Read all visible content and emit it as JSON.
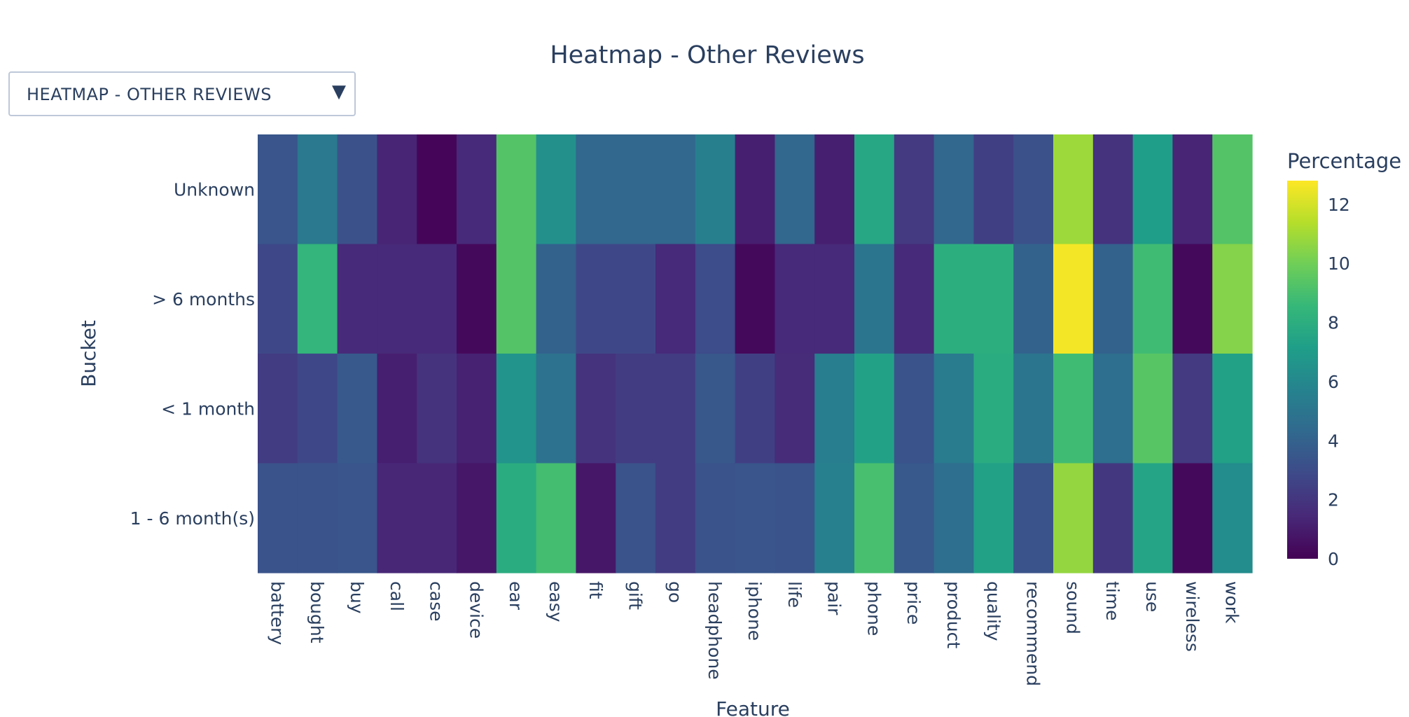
{
  "dropdown": {
    "selected": "HEATMAP - OTHER REVIEWS",
    "arrow_icon": "triangle-down-icon"
  },
  "chart_data": {
    "type": "heatmap",
    "title": "Heatmap - Other Reviews",
    "xlabel": "Feature",
    "ylabel": "Bucket",
    "colorbar_title": "Percentage",
    "colorscale": "viridis",
    "zmin": 0,
    "zmax": 12.8,
    "colorbar_ticks": [
      0,
      2,
      4,
      6,
      8,
      10,
      12
    ],
    "x": [
      "battery",
      "bought",
      "buy",
      "call",
      "case",
      "device",
      "ear",
      "easy",
      "fit",
      "gift",
      "go",
      "headphone",
      "iphone",
      "life",
      "pair",
      "phone",
      "price",
      "product",
      "quality",
      "recommend",
      "sound",
      "time",
      "use",
      "wireless",
      "work"
    ],
    "y": [
      "Unknown",
      "> 6 months",
      "< 1 month",
      "1 - 6 month(s)"
    ],
    "z": [
      [
        3.4,
        5.2,
        3.2,
        1.3,
        0.2,
        1.5,
        9.3,
        6.4,
        4.2,
        4.2,
        4.2,
        5.5,
        1.1,
        4.2,
        1.1,
        7.6,
        2.2,
        4.2,
        2.4,
        3.2,
        10.9,
        1.9,
        7.1,
        1.3,
        9.3
      ],
      [
        2.8,
        8.4,
        1.5,
        1.5,
        1.5,
        0.3,
        9.3,
        4.0,
        2.8,
        2.8,
        1.5,
        3.0,
        0.3,
        1.5,
        1.5,
        5.0,
        1.5,
        8.0,
        8.0,
        4.0,
        12.6,
        4.0,
        8.8,
        0.3,
        10.4
      ],
      [
        2.3,
        2.8,
        3.6,
        1.1,
        1.9,
        1.2,
        6.6,
        4.8,
        1.9,
        2.3,
        2.3,
        3.5,
        2.4,
        1.6,
        5.4,
        7.3,
        3.3,
        5.3,
        7.9,
        5.0,
        8.8,
        4.6,
        9.4,
        2.2,
        7.3
      ],
      [
        3.3,
        3.3,
        3.4,
        1.4,
        1.4,
        0.8,
        7.9,
        8.9,
        0.8,
        3.3,
        2.3,
        3.3,
        3.4,
        3.3,
        5.6,
        9.0,
        3.6,
        4.6,
        7.3,
        3.3,
        10.7,
        2.1,
        7.5,
        0.3,
        6.2
      ]
    ]
  }
}
